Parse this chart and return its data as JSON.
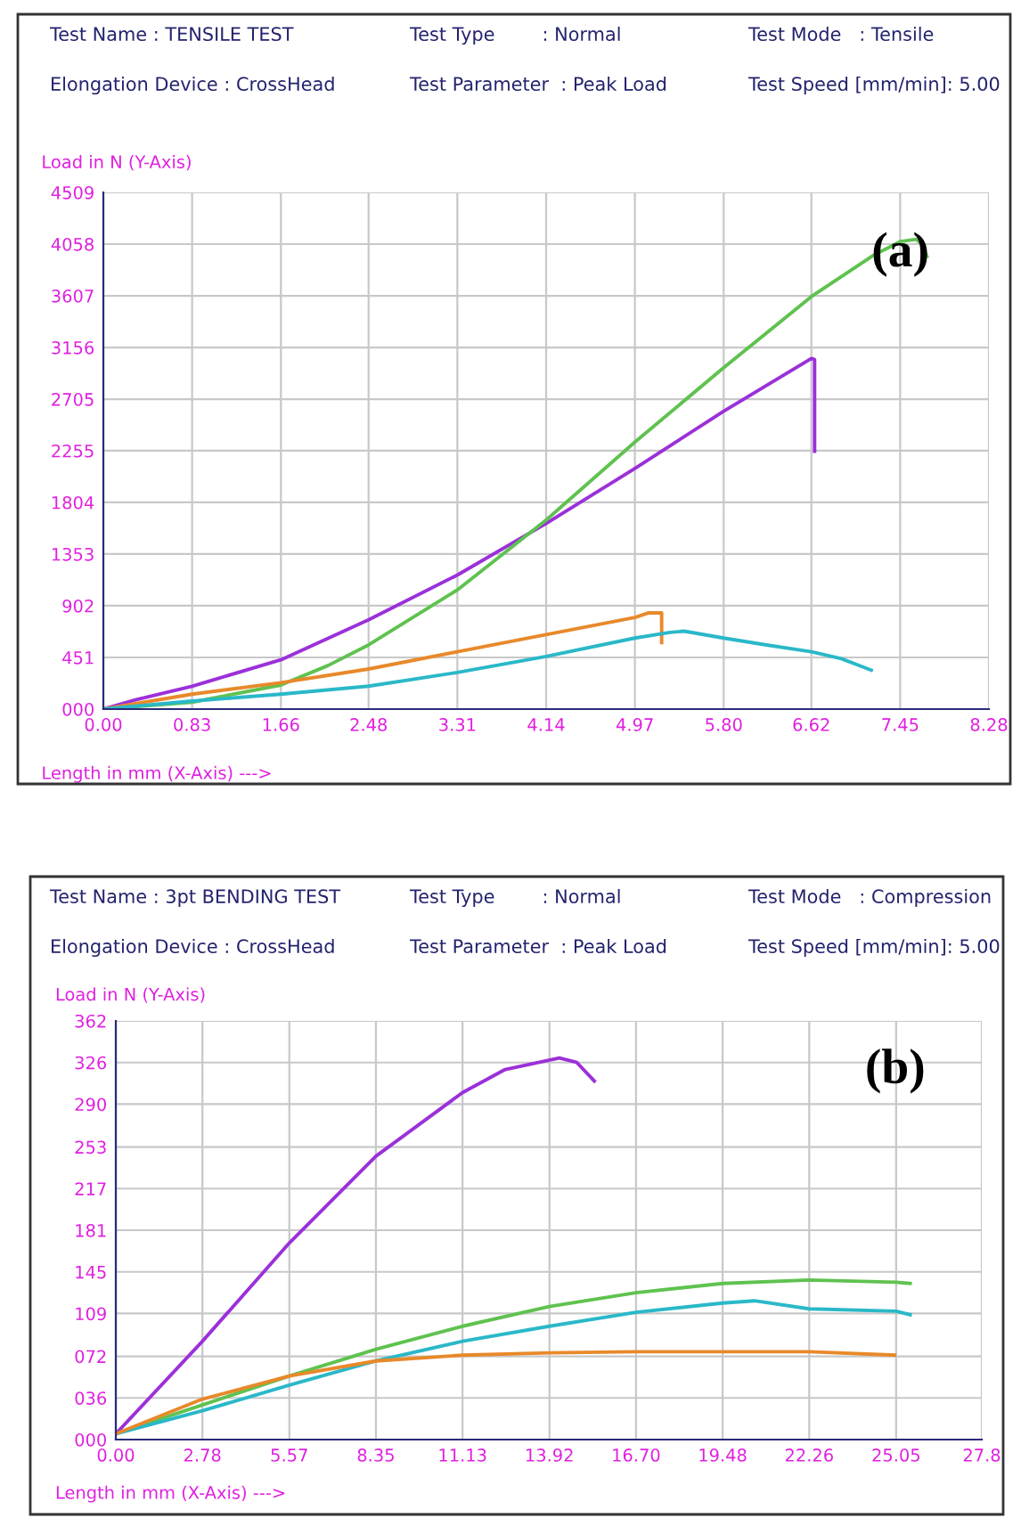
{
  "chart_data": [
    {
      "type": "line",
      "xlabel": "Length in mm (X-Axis) --->",
      "ylabel": "Load in N (Y-Axis)",
      "annotations": [
        "Test Name : TENSILE TEST",
        "Elongation Device : CrossHead",
        "Test Type        : Normal",
        "Test Parameter  : Peak Load",
        "Test Mode   : Tensile",
        "Test Speed [mm/min]: 5.00",
        "(a)"
      ],
      "xlim": [
        0,
        8.28
      ],
      "ylim": [
        0,
        4509
      ],
      "xticks": [
        {
          "value": 0,
          "label": "0.00"
        },
        0.83,
        1.66,
        2.48,
        3.31,
        4.14,
        4.97,
        {
          "value": 5.8,
          "label": "5.80"
        },
        6.62,
        7.45,
        8.28
      ],
      "yticks": [
        {
          "value": 0,
          "label": "000"
        },
        451,
        902,
        1353,
        1804,
        2255,
        2705,
        3156,
        3607,
        4058,
        4509
      ],
      "grid": true,
      "legend": false,
      "marker": "none",
      "line_style": "solid",
      "series": [
        {
          "color": "#9b30d9",
          "x": [
            0,
            0.3,
            0.83,
            1.66,
            2.48,
            3.31,
            4.14,
            4.97,
            5.8,
            6.62,
            6.65,
            6.65
          ],
          "values": [
            0,
            80,
            200,
            430,
            780,
            1170,
            1620,
            2100,
            2600,
            3060,
            3050,
            2250
          ]
        },
        {
          "color": "#5fc24f",
          "x": [
            0,
            0.83,
            1.66,
            2.1,
            2.48,
            3.31,
            4.14,
            4.97,
            5.8,
            6.62,
            7.2,
            7.45,
            7.6,
            7.66,
            7.7
          ],
          "values": [
            0,
            60,
            210,
            380,
            560,
            1040,
            1650,
            2330,
            2980,
            3600,
            3960,
            4080,
            4100,
            4050,
            3950
          ]
        },
        {
          "color": "#e8892a",
          "x": [
            0,
            0.83,
            1.66,
            2.48,
            3.31,
            4.14,
            4.97,
            5.1,
            5.22,
            5.22
          ],
          "values": [
            0,
            130,
            230,
            350,
            500,
            650,
            800,
            840,
            840,
            580
          ]
        },
        {
          "color": "#2ab8c8",
          "x": [
            0,
            0.83,
            1.66,
            2.48,
            3.31,
            4.14,
            4.97,
            5.3,
            5.43,
            5.8,
            6.2,
            6.62,
            6.9,
            7.18
          ],
          "values": [
            0,
            70,
            130,
            200,
            320,
            460,
            620,
            670,
            680,
            620,
            560,
            500,
            440,
            340
          ]
        }
      ]
    },
    {
      "type": "line",
      "xlabel": "Length in mm (X-Axis) --->",
      "ylabel": "Load in N (Y-Axis)",
      "annotations": [
        "Test Name : 3pt BENDING TEST",
        "Elongation Device : CrossHead",
        "Test Type        : Normal",
        "Test Parameter  : Peak Load",
        "Test Mode   : Compression",
        "Test Speed [mm/min]: 5.00",
        "(b)"
      ],
      "xlim": [
        0,
        27.8
      ],
      "ylim": [
        0,
        362
      ],
      "xticks": [
        {
          "value": 0,
          "label": "0.00"
        },
        2.78,
        5.57,
        8.35,
        11.13,
        13.92,
        {
          "value": 16.7,
          "label": "16.70"
        },
        19.48,
        22.26,
        25.05,
        27.8
      ],
      "yticks": [
        {
          "value": 0,
          "label": "000"
        },
        {
          "value": 36,
          "label": "036"
        },
        {
          "value": 72,
          "label": "072"
        },
        109,
        145,
        181,
        217,
        253,
        290,
        326,
        362
      ],
      "grid": true,
      "legend": false,
      "marker": "none",
      "line_style": "solid",
      "series": [
        {
          "color": "#9b30d9",
          "x": [
            0,
            2.78,
            5.57,
            8.35,
            11.13,
            12.5,
            14.24,
            14.8,
            15.36
          ],
          "values": [
            5,
            85,
            170,
            245,
            300,
            320,
            330,
            326,
            310
          ]
        },
        {
          "color": "#5fc24f",
          "x": [
            0,
            2.78,
            5.57,
            8.35,
            11.13,
            13.92,
            16.7,
            19.48,
            22.26,
            25.05,
            25.5
          ],
          "values": [
            5,
            30,
            55,
            78,
            98,
            115,
            127,
            135,
            138,
            136,
            135
          ]
        },
        {
          "color": "#2ab8c8",
          "x": [
            0,
            2.78,
            5.57,
            8.35,
            11.13,
            13.92,
            16.7,
            19.48,
            20.5,
            22.26,
            25.05,
            25.5
          ],
          "values": [
            5,
            25,
            47,
            68,
            85,
            98,
            110,
            118,
            120,
            113,
            111,
            108
          ]
        },
        {
          "color": "#e8892a",
          "x": [
            0,
            2.78,
            5.57,
            8.35,
            11.13,
            13.92,
            16.7,
            19.48,
            22.26,
            25
          ],
          "values": [
            5,
            35,
            55,
            68,
            73,
            75,
            76,
            76,
            76,
            73
          ]
        }
      ]
    }
  ]
}
